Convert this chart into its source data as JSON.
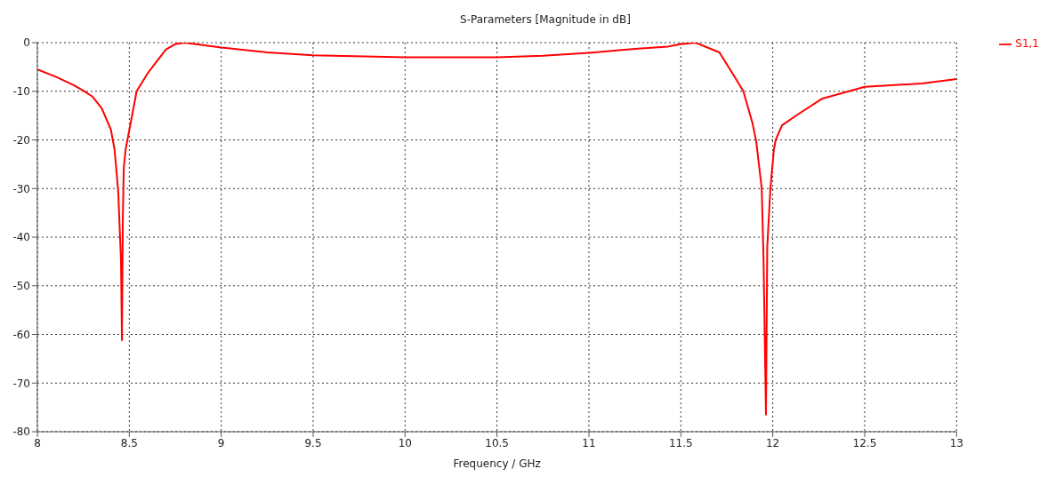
{
  "chart_data": {
    "type": "line",
    "title": "S-Parameters [Magnitude in dB]",
    "xlabel": "Frequency / GHz",
    "x": [
      8,
      8.1,
      8.2,
      8.25,
      8.3,
      8.35,
      8.4,
      8.42,
      8.44,
      8.455,
      8.46,
      8.465,
      8.47,
      8.48,
      8.49,
      8.54,
      8.6,
      8.65,
      8.7,
      8.75,
      8.8,
      9,
      9.25,
      9.5,
      10,
      10.5,
      10.75,
      11,
      11.25,
      11.43,
      11.5,
      11.58,
      11.71,
      11.8,
      11.84,
      11.89,
      11.91,
      11.94,
      11.95,
      11.963,
      11.97,
      11.987,
      12.006,
      12.016,
      12.05,
      12.135,
      12.27,
      12.5,
      12.81,
      13
    ],
    "series": [
      {
        "name": "S1,1",
        "color": "#ff0000",
        "values": [
          -5.5,
          -7,
          -8.8,
          -9.9,
          -11.1,
          -13.5,
          -17.9,
          -22,
          -30.7,
          -45,
          -61.2,
          -36,
          -25.8,
          -22,
          -20,
          -10,
          -6.3,
          -3.8,
          -1.4,
          -0.3,
          0,
          -1,
          -2,
          -2.6,
          -3,
          -3,
          -2.7,
          -2.1,
          -1.3,
          -0.8,
          -0.3,
          0,
          -2,
          -7.5,
          -10,
          -16.6,
          -20.3,
          -30,
          -45,
          -76.5,
          -42,
          -30,
          -22,
          -20,
          -17,
          -14.8,
          -11.5,
          -9.1,
          -8.4,
          -7.5
        ]
      }
    ],
    "xlim": [
      8,
      13
    ],
    "xticks": [
      8,
      8.5,
      9,
      9.5,
      10,
      10.5,
      11,
      11.5,
      12,
      12.5,
      13
    ],
    "ylim": [
      -80,
      0
    ],
    "yticks": [
      -80,
      -70,
      -60,
      -50,
      -40,
      -30,
      -20,
      -10,
      0
    ],
    "grid": true,
    "legend": "top right",
    "line_style": "solid"
  }
}
